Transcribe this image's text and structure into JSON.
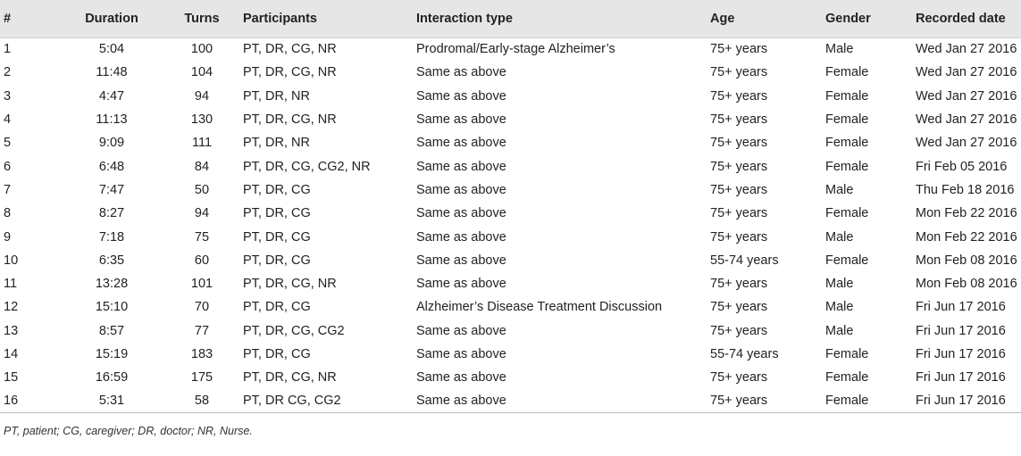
{
  "table": {
    "headers": [
      "#",
      "Duration",
      "Turns",
      "Participants",
      "Interaction type",
      "Age",
      "Gender",
      "Recorded date"
    ],
    "rows": [
      [
        "1",
        "5:04",
        "100",
        "PT, DR, CG, NR",
        "Prodromal/Early-stage Alzheimer’s",
        "75+ years",
        "Male",
        "Wed Jan 27 2016"
      ],
      [
        "2",
        "11:48",
        "104",
        "PT, DR, CG, NR",
        "Same as above",
        "75+ years",
        "Female",
        "Wed Jan 27 2016"
      ],
      [
        "3",
        "4:47",
        "94",
        "PT, DR, NR",
        "Same as above",
        "75+ years",
        "Female",
        "Wed Jan 27 2016"
      ],
      [
        "4",
        "11:13",
        "130",
        "PT, DR, CG, NR",
        "Same as above",
        "75+ years",
        "Female",
        "Wed Jan 27 2016"
      ],
      [
        "5",
        "9:09",
        "111",
        "PT, DR, NR",
        "Same as above",
        "75+ years",
        "Female",
        "Wed Jan 27 2016"
      ],
      [
        "6",
        "6:48",
        "84",
        "PT, DR, CG, CG2, NR",
        "Same as above",
        "75+ years",
        "Female",
        "Fri Feb 05 2016"
      ],
      [
        "7",
        "7:47",
        "50",
        "PT, DR, CG",
        "Same as above",
        "75+ years",
        "Male",
        "Thu Feb 18 2016"
      ],
      [
        "8",
        "8:27",
        "94",
        "PT, DR, CG",
        "Same as above",
        "75+ years",
        "Female",
        "Mon Feb 22 2016"
      ],
      [
        "9",
        "7:18",
        "75",
        "PT, DR, CG",
        "Same as above",
        "75+ years",
        "Male",
        "Mon Feb 22 2016"
      ],
      [
        "10",
        "6:35",
        "60",
        "PT, DR, CG",
        "Same as above",
        "55-74 years",
        "Female",
        "Mon Feb 08 2016"
      ],
      [
        "11",
        "13:28",
        "101",
        "PT, DR, CG, NR",
        "Same as above",
        "75+ years",
        "Male",
        "Mon Feb 08 2016"
      ],
      [
        "12",
        "15:10",
        "70",
        "PT, DR, CG",
        "Alzheimer’s Disease Treatment Discussion",
        "75+ years",
        "Male",
        "Fri Jun 17 2016"
      ],
      [
        "13",
        "8:57",
        "77",
        "PT, DR, CG, CG2",
        "Same as above",
        "75+ years",
        "Male",
        "Fri Jun 17 2016"
      ],
      [
        "14",
        "15:19",
        "183",
        "PT, DR, CG",
        "Same as above",
        "55-74 years",
        "Female",
        "Fri Jun 17 2016"
      ],
      [
        "15",
        "16:59",
        "175",
        "PT, DR, CG, NR",
        "Same as above",
        "75+ years",
        "Female",
        "Fri Jun 17 2016"
      ],
      [
        "16",
        "5:31",
        "58",
        "PT, DR CG, CG2",
        "Same as above",
        "75+ years",
        "Female",
        "Fri Jun 17 2016"
      ]
    ]
  },
  "footnote": "PT, patient; CG, caregiver; DR, doctor; NR, Nurse."
}
